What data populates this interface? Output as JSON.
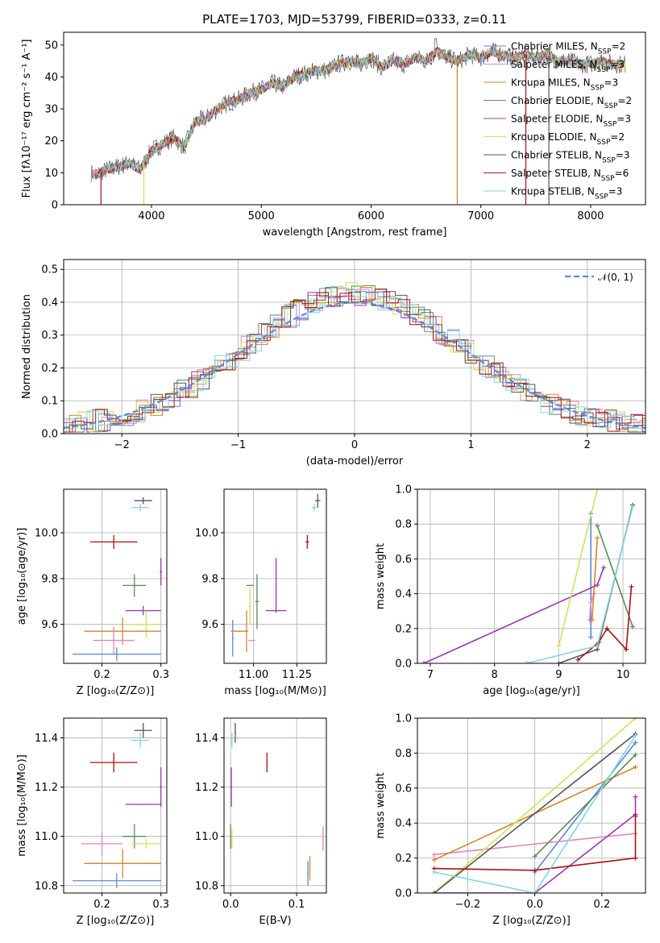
{
  "chart_data": [
    {
      "id": "spectrum",
      "type": "line",
      "title": "PLATE=1703, MJD=53799, FIBERID=0333, z=0.11",
      "xlabel": "wavelength [Angstrom, rest frame]",
      "ylabel": "Flux [fλ10⁻¹⁷ erg cm⁻² s⁻¹ A⁻¹]",
      "xlim": [
        3200,
        8500
      ],
      "ylim": [
        0,
        54
      ],
      "xticks": [
        4000,
        5000,
        6000,
        7000,
        8000
      ],
      "yticks": [
        0,
        10,
        20,
        30,
        40,
        50
      ],
      "legend_position": "right",
      "series": [
        {
          "name": "Chabrier MILES, N",
          "sub": "SSP",
          "val": "=2",
          "color": "#5b88d6"
        },
        {
          "name": "Salpeter MILES, N",
          "sub": "SSP",
          "val": "=3",
          "color": "#e385bd"
        },
        {
          "name": "Kroupa MILES, N",
          "sub": "SSP",
          "val": "=3",
          "color": "#d9822b"
        },
        {
          "name": "Chabrier ELODIE, N",
          "sub": "SSP",
          "val": "=2",
          "color": "#5a8b5a"
        },
        {
          "name": "Salpeter ELODIE, N",
          "sub": "SSP",
          "val": "=3",
          "color": "#9b34b3"
        },
        {
          "name": "Kroupa ELODIE, N",
          "sub": "SSP",
          "val": "=2",
          "color": "#cfe35a"
        },
        {
          "name": "Chabrier STELIB, N",
          "sub": "SSP",
          "val": "=3",
          "color": "#555555"
        },
        {
          "name": "Salpeter STELIB, N",
          "sub": "SSP",
          "val": "=6",
          "color": "#aa1111"
        },
        {
          "name": "Kroupa STELIB, N",
          "sub": "SSP",
          "val": "=3",
          "color": "#7fd6df"
        }
      ],
      "x": [
        3450,
        3500,
        3600,
        3700,
        3800,
        3900,
        4000,
        4100,
        4200,
        4300,
        4400,
        4500,
        4600,
        4700,
        4800,
        4900,
        5000,
        5100,
        5200,
        5300,
        5400,
        5500,
        5600,
        5700,
        5800,
        5900,
        6000,
        6100,
        6200,
        6300,
        6400,
        6500,
        6600,
        6700,
        6800,
        6900,
        7000,
        7100,
        7200,
        7300,
        7400,
        7500,
        7600,
        7700,
        7800,
        7900,
        8000,
        8100,
        8200,
        8300
      ],
      "y": [
        10,
        9.5,
        11,
        12,
        13,
        11,
        17,
        19,
        21,
        18,
        26,
        27,
        30,
        32,
        33,
        35,
        36,
        38,
        37,
        40,
        41,
        42,
        42,
        44,
        45,
        44,
        46,
        43,
        45,
        44,
        46,
        45,
        48,
        46,
        45,
        47,
        46,
        48,
        47,
        46,
        47,
        46,
        47,
        45,
        45,
        44,
        44,
        45,
        44,
        44
      ]
    },
    {
      "id": "residuals",
      "type": "step-histogram",
      "xlabel": "(data-model)/error",
      "ylabel": "Normed distribution",
      "xlim": [
        -2.5,
        2.5
      ],
      "ylim": [
        0,
        0.53
      ],
      "xticks": [
        -2,
        -1,
        0,
        1,
        2
      ],
      "yticks": [
        0.0,
        0.1,
        0.2,
        0.3,
        0.4,
        0.5
      ],
      "legend": "𝒩(0, 1)",
      "legend_position": "top-right",
      "gaussian": {
        "mean": 0,
        "sigma": 1
      }
    },
    {
      "id": "age-vs-Z",
      "type": "errorbar",
      "xlabel": "Z [log₁₀(Z/Z⊙)]",
      "ylabel": "age  [log₁₀(age/yr)]",
      "xlim": [
        0.135,
        0.31
      ],
      "ylim": [
        9.43,
        10.19
      ],
      "xticks": [
        0.2,
        0.3
      ],
      "yticks": [
        9.6,
        9.8,
        10.0
      ],
      "points": [
        {
          "x": 0.27,
          "xerr": 0.015,
          "y": 10.14,
          "yerr": 0.015,
          "color": "#555555"
        },
        {
          "x": 0.265,
          "xerr": 0.015,
          "y": 10.11,
          "yerr": 0.015,
          "color": "#7fd6df"
        },
        {
          "x": 0.22,
          "xerr": 0.04,
          "y": 9.96,
          "yerr": 0.03,
          "color": "#aa1111"
        },
        {
          "x": 0.3,
          "xerr": 0.002,
          "y": 9.83,
          "yerr": 0.06,
          "color": "#9b34b3"
        },
        {
          "x": 0.255,
          "xerr": 0.02,
          "y": 9.77,
          "yerr": 0.05,
          "color": "#5a8b5a"
        },
        {
          "x": 0.27,
          "xerr": 0.03,
          "y": 9.66,
          "yerr": 0.02,
          "color": "#9b34b3"
        },
        {
          "x": 0.275,
          "xerr": 0.025,
          "y": 9.6,
          "yerr": 0.06,
          "color": "#cfe35a"
        },
        {
          "x": 0.235,
          "xerr": 0.065,
          "y": 9.57,
          "yerr": 0.06,
          "color": "#d9822b"
        },
        {
          "x": 0.22,
          "xerr": 0.035,
          "y": 9.53,
          "yerr": 0.06,
          "color": "#e385bd"
        },
        {
          "x": 0.225,
          "xerr": 0.075,
          "y": 9.47,
          "yerr": 0.03,
          "color": "#5b88d6"
        }
      ]
    },
    {
      "id": "age-vs-mass",
      "type": "errorbar",
      "xlabel": "mass [log₁₀(M/M⊙)]",
      "xlim": [
        10.83,
        11.42
      ],
      "ylim": [
        9.43,
        10.19
      ],
      "xticks": [
        11.0,
        11.25
      ],
      "yticks": [
        9.6,
        9.8,
        10.0
      ],
      "points": [
        {
          "x": 11.37,
          "xerr": 0.015,
          "y": 10.14,
          "yerr": 0.03,
          "color": "#555555"
        },
        {
          "x": 11.35,
          "xerr": 0.015,
          "y": 10.11,
          "yerr": 0.015,
          "color": "#7fd6df"
        },
        {
          "x": 11.31,
          "xerr": 0.01,
          "y": 9.96,
          "yerr": 0.03,
          "color": "#aa1111"
        },
        {
          "x": 11.13,
          "xerr": 0.002,
          "y": 9.77,
          "yerr": 0.12,
          "color": "#9b34b3"
        },
        {
          "x": 11.13,
          "xerr": 0.06,
          "y": 9.66,
          "yerr": 0.002,
          "color": "#9b34b3"
        },
        {
          "x": 11.02,
          "xerr": 0.01,
          "y": 9.7,
          "yerr": 0.12,
          "color": "#5a8b5a"
        },
        {
          "x": 10.98,
          "xerr": 0.02,
          "y": 9.77,
          "yerr": 0.002,
          "color": "#5a8b5a"
        },
        {
          "x": 10.98,
          "xerr": 0.005,
          "y": 9.68,
          "yerr": 0.08,
          "color": "#cfe35a"
        },
        {
          "x": 10.96,
          "xerr": 0.005,
          "y": 9.57,
          "yerr": 0.09,
          "color": "#d9822b"
        },
        {
          "x": 10.88,
          "xerr": 0.005,
          "y": 9.54,
          "yerr": 0.08,
          "color": "#5b88d6"
        },
        {
          "x": 10.92,
          "xerr": 0.05,
          "y": 9.57,
          "yerr": 0.002,
          "color": "#d9822b"
        },
        {
          "x": 10.99,
          "xerr": 0.02,
          "y": 9.53,
          "yerr": 0.002,
          "color": "#e385bd"
        }
      ]
    },
    {
      "id": "massweight-vs-age",
      "type": "line",
      "xlabel": "age  [log₁₀(age/yr)]",
      "ylabel": "mass weight",
      "xlim": [
        6.8,
        10.35
      ],
      "ylim": [
        0,
        1.0
      ],
      "xticks": [
        7,
        8,
        9,
        10
      ],
      "yticks": [
        0.0,
        0.2,
        0.4,
        0.6,
        0.8,
        1.0
      ],
      "series": [
        {
          "color": "#5b88d6",
          "points": [
            [
              9.5,
              0.15
            ],
            [
              9.5,
              0.86
            ]
          ]
        },
        {
          "color": "#e385bd",
          "points": [
            [
              9.48,
              0.25
            ],
            [
              9.5,
              0.35
            ],
            [
              9.55,
              0.4
            ]
          ]
        },
        {
          "color": "#d9822b",
          "points": [
            [
              9.52,
              0.25
            ],
            [
              9.6,
              0.72
            ]
          ]
        },
        {
          "color": "#5a8b5a",
          "points": [
            [
              9.6,
              0.79
            ],
            [
              10.15,
              0.21
            ]
          ]
        },
        {
          "color": "#9b34b3",
          "points": [
            [
              6.9,
              0.0
            ],
            [
              9.6,
              0.45
            ],
            [
              9.7,
              0.55
            ]
          ]
        },
        {
          "color": "#cfe35a",
          "points": [
            [
              9.0,
              0.1
            ],
            [
              9.6,
              1.0
            ]
          ]
        },
        {
          "color": "#555555",
          "points": [
            [
              9.0,
              0.0
            ],
            [
              9.6,
              0.08
            ],
            [
              10.15,
              0.91
            ]
          ]
        },
        {
          "color": "#aa1111",
          "points": [
            [
              9.3,
              0.02
            ],
            [
              9.62,
              0.12
            ],
            [
              9.75,
              0.2
            ],
            [
              10.05,
              0.08
            ],
            [
              10.13,
              0.44
            ]
          ]
        },
        {
          "color": "#7fd6df",
          "points": [
            [
              8.5,
              0.0
            ],
            [
              9.6,
              0.1
            ],
            [
              10.15,
              0.9
            ]
          ]
        }
      ]
    },
    {
      "id": "mass-vs-Z",
      "type": "errorbar",
      "xlabel": "Z [log₁₀(Z/Z⊙)]",
      "ylabel": "mass [log₁₀(M/M⊙)]",
      "xlim": [
        0.135,
        0.31
      ],
      "ylim": [
        10.77,
        11.48
      ],
      "xticks": [
        0.2,
        0.3
      ],
      "yticks": [
        10.8,
        11.0,
        11.2,
        11.4
      ],
      "points": [
        {
          "x": 0.27,
          "xerr": 0.015,
          "y": 11.43,
          "yerr": 0.03,
          "color": "#555555"
        },
        {
          "x": 0.265,
          "xerr": 0.015,
          "y": 11.39,
          "yerr": 0.03,
          "color": "#7fd6df"
        },
        {
          "x": 0.22,
          "xerr": 0.04,
          "y": 11.3,
          "yerr": 0.04,
          "color": "#aa1111"
        },
        {
          "x": 0.3,
          "xerr": 0.002,
          "y": 11.2,
          "yerr": 0.08,
          "color": "#9b34b3"
        },
        {
          "x": 0.27,
          "xerr": 0.03,
          "y": 11.13,
          "yerr": 0.002,
          "color": "#9b34b3"
        },
        {
          "x": 0.255,
          "xerr": 0.02,
          "y": 11.0,
          "yerr": 0.05,
          "color": "#5a8b5a"
        },
        {
          "x": 0.275,
          "xerr": 0.025,
          "y": 10.97,
          "yerr": 0.02,
          "color": "#cfe35a"
        },
        {
          "x": 0.2,
          "xerr": 0.035,
          "y": 10.97,
          "yerr": 0.05,
          "color": "#e385bd"
        },
        {
          "x": 0.235,
          "xerr": 0.065,
          "y": 10.89,
          "yerr": 0.06,
          "color": "#d9822b"
        },
        {
          "x": 0.225,
          "xerr": 0.075,
          "y": 10.82,
          "yerr": 0.03,
          "color": "#5b88d6"
        }
      ]
    },
    {
      "id": "mass-vs-EBV",
      "type": "errorbar",
      "xlabel": "E(B-V)",
      "xlim": [
        -0.01,
        0.145
      ],
      "ylim": [
        10.77,
        11.48
      ],
      "xticks": [
        0.0,
        0.1
      ],
      "yticks": [
        10.8,
        11.0,
        11.2,
        11.4
      ],
      "points": [
        {
          "x": 0.007,
          "xerr": 0.001,
          "y": 11.42,
          "yerr": 0.04,
          "color": "#555555"
        },
        {
          "x": 0.002,
          "xerr": 0.001,
          "y": 11.39,
          "yerr": 0.03,
          "color": "#7fd6df"
        },
        {
          "x": 0.055,
          "xerr": 0.001,
          "y": 11.3,
          "yerr": 0.04,
          "color": "#aa1111"
        },
        {
          "x": 0.001,
          "xerr": 0.001,
          "y": 11.2,
          "yerr": 0.08,
          "color": "#9b34b3"
        },
        {
          "x": 0.0,
          "xerr": 0.001,
          "y": 11.0,
          "yerr": 0.05,
          "color": "#5a8b5a"
        },
        {
          "x": 0.002,
          "xerr": 0.001,
          "y": 10.99,
          "yerr": 0.04,
          "color": "#cfe35a"
        },
        {
          "x": 0.14,
          "xerr": 0.001,
          "y": 10.99,
          "yerr": 0.05,
          "color": "#e385bd"
        },
        {
          "x": 0.12,
          "xerr": 0.001,
          "y": 10.87,
          "yerr": 0.05,
          "color": "#d9822b"
        },
        {
          "x": 0.117,
          "xerr": 0.001,
          "y": 10.85,
          "yerr": 0.05,
          "color": "#5b88d6"
        }
      ]
    },
    {
      "id": "massweight-vs-Z",
      "type": "line",
      "xlabel": "Z [log₁₀(Z/Z⊙)]",
      "ylabel": "mass weight",
      "xlim": [
        -0.35,
        0.33
      ],
      "ylim": [
        0,
        1.0
      ],
      "xticks": [
        -0.2,
        0.0,
        0.2
      ],
      "yticks": [
        0.0,
        0.2,
        0.4,
        0.6,
        0.8,
        1.0
      ],
      "series": [
        {
          "color": "#5b88d6",
          "points": [
            [
              0.0,
              0.12
            ],
            [
              0.3,
              0.86
            ]
          ]
        },
        {
          "color": "#e385bd",
          "points": [
            [
              -0.3,
              0.22
            ],
            [
              0.3,
              0.34
            ]
          ]
        },
        {
          "color": "#d9822b",
          "points": [
            [
              -0.3,
              0.19
            ],
            [
              0.3,
              0.72
            ]
          ]
        },
        {
          "color": "#5a8b5a",
          "points": [
            [
              0.0,
              0.21
            ],
            [
              0.3,
              0.79
            ]
          ]
        },
        {
          "color": "#9b34b3",
          "points": [
            [
              -0.3,
              0.0
            ],
            [
              0.0,
              0.0
            ],
            [
              0.3,
              0.45
            ],
            [
              0.3,
              0.55
            ]
          ]
        },
        {
          "color": "#cfe35a",
          "points": [
            [
              -0.3,
              0.0
            ],
            [
              0.3,
              1.0
            ]
          ]
        },
        {
          "color": "#555555",
          "points": [
            [
              -0.3,
              0.0
            ],
            [
              0.3,
              0.91
            ]
          ]
        },
        {
          "color": "#aa1111",
          "points": [
            [
              -0.3,
              0.14
            ],
            [
              0.0,
              0.13
            ],
            [
              0.3,
              0.2
            ],
            [
              0.3,
              0.44
            ]
          ]
        },
        {
          "color": "#7fd6df",
          "points": [
            [
              -0.3,
              0.12
            ],
            [
              0.0,
              0.0
            ],
            [
              0.3,
              0.9
            ]
          ]
        }
      ]
    }
  ]
}
